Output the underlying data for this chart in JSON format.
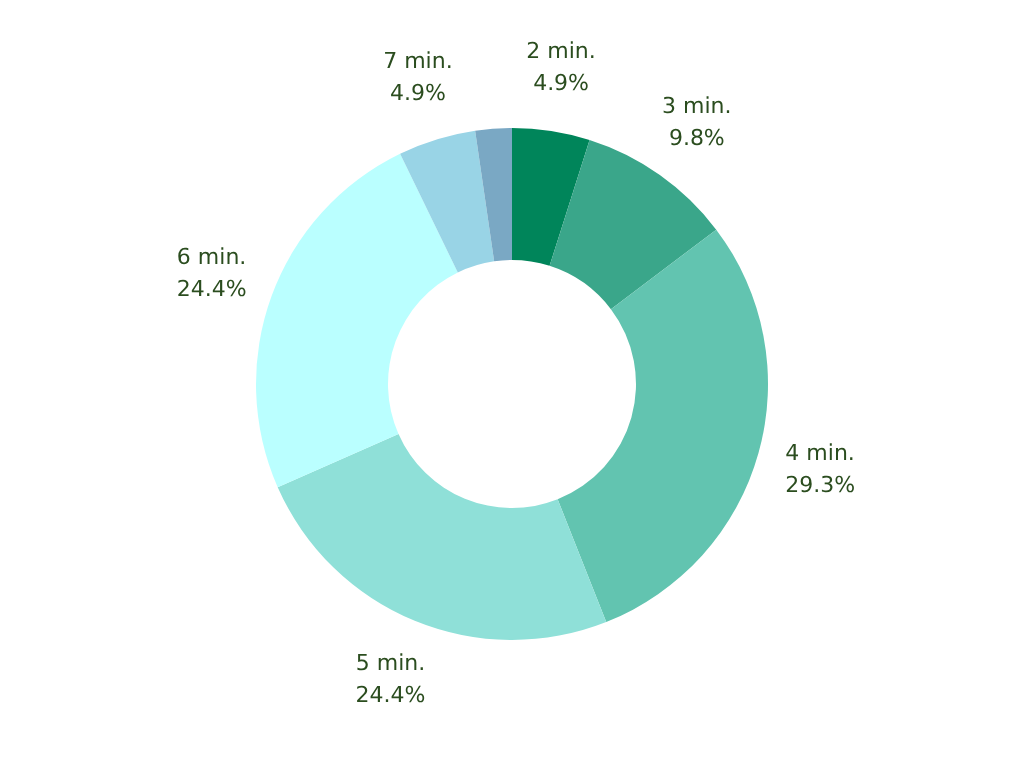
{
  "chart_data": {
    "type": "donut",
    "categories": [
      "2 min.",
      "3 min.",
      "4 min.",
      "5 min.",
      "6 min.",
      "7 min.",
      null
    ],
    "values": [
      4.9,
      9.8,
      29.3,
      24.4,
      24.4,
      4.9,
      2.3
    ],
    "value_labels": [
      "4.9%",
      "9.8%",
      "29.3%",
      "24.4%",
      "24.4%",
      "4.9%",
      null
    ],
    "colors": [
      "#00855a",
      "#3aa68a",
      "#62c4b0",
      "#8fe0d8",
      "#baffff",
      "#99d4e6",
      "#7aa8c4"
    ]
  }
}
